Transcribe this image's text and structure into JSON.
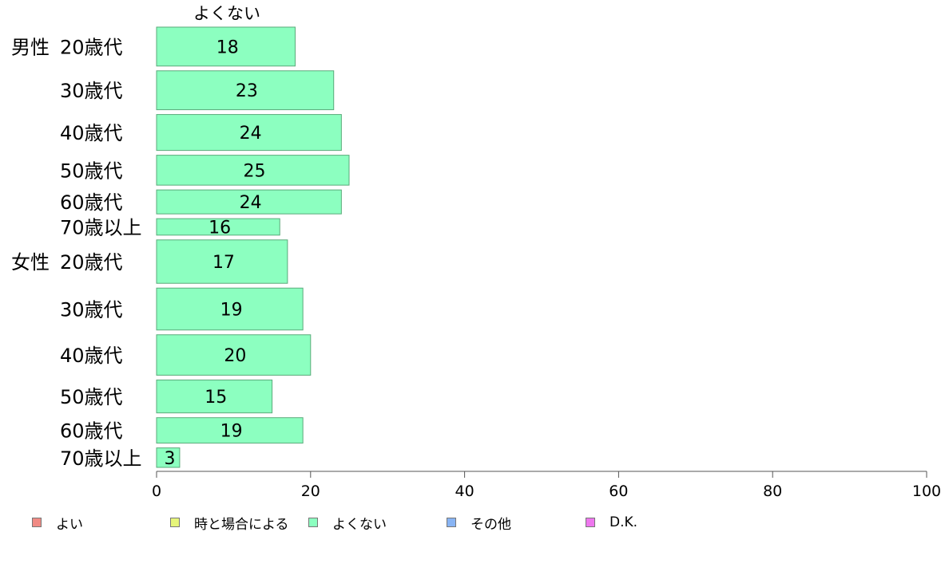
{
  "chart_data": {
    "type": "bar",
    "orientation": "horizontal",
    "title": "よくない",
    "groups": [
      "男性",
      "女性"
    ],
    "categories": [
      "20歳代",
      "30歳代",
      "40歳代",
      "50歳代",
      "60歳代",
      "70歳以上",
      "20歳代",
      "30歳代",
      "40歳代",
      "50歳代",
      "60歳代",
      "70歳以上"
    ],
    "group_of_category": [
      0,
      0,
      0,
      0,
      0,
      0,
      1,
      1,
      1,
      1,
      1,
      1
    ],
    "relative_weights": [
      1.3,
      1.3,
      1.2,
      1.0,
      0.8,
      0.55,
      1.45,
      1.4,
      1.35,
      1.1,
      0.85,
      0.65
    ],
    "series": [
      {
        "name": "よくない",
        "values": [
          18,
          23,
          24,
          25,
          24,
          16,
          17,
          19,
          20,
          15,
          19,
          3
        ]
      }
    ],
    "xlim": [
      0,
      100
    ],
    "xticks": [
      0,
      20,
      40,
      60,
      80,
      100
    ],
    "grid": false,
    "bar_color": "#8cffc0",
    "bar_edge_color": "#5aaa7a",
    "legend_position": "bottom",
    "legend": [
      {
        "label": "よい",
        "color": "#f08a84"
      },
      {
        "label": "時と場合による",
        "color": "#e6f57a"
      },
      {
        "label": "よくない",
        "color": "#8cffc0"
      },
      {
        "label": "その他",
        "color": "#88b4f4"
      },
      {
        "label": "D.K.",
        "color": "#ee77ee"
      }
    ]
  }
}
